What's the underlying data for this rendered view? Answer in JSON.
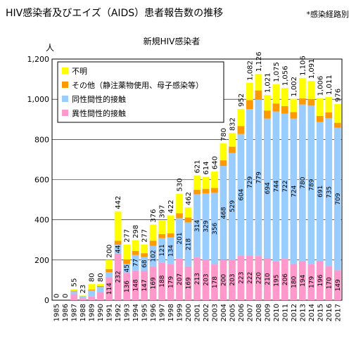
{
  "header": {
    "title": "HIV感染者及びエイズ（AIDS）患者報告数の推移",
    "note": "*感染経路別"
  },
  "chart_data": {
    "type": "bar",
    "stacked": true,
    "title": "新規HIV感染者",
    "ylabel": "人",
    "ylim": [
      0,
      1200
    ],
    "yticks": [
      0,
      200,
      400,
      600,
      800,
      1000,
      1200
    ],
    "ytick_labels": [
      "0",
      "200",
      "400",
      "600",
      "800",
      "1,000",
      "1,200"
    ],
    "grid": true,
    "legend_position": "top-left",
    "categories": [
      "1985",
      "1986",
      "1987",
      "1988",
      "1989",
      "1990",
      "1991",
      "1992",
      "1993",
      "1994",
      "1995",
      "1996",
      "1997",
      "1998",
      "1999",
      "2000",
      "2001",
      "2002",
      "2003",
      "2004",
      "2005",
      "2006",
      "2007",
      "2008",
      "2009",
      "2010",
      "2011",
      "2012",
      "2013",
      "2014",
      "2015",
      "2016",
      "2017"
    ],
    "series": [
      {
        "name": "異性間性的接触",
        "color": "#ff99cc",
        "values": [
          0,
          0,
          30,
          10,
          18,
          40,
          114,
          232,
          136,
          148,
          147,
          169,
          188,
          179,
          207,
          169,
          213,
          203,
          178,
          200,
          203,
          223,
          222,
          220,
          210,
          195,
          206,
          180,
          194,
          179,
          196,
          170,
          149
        ]
      },
      {
        "name": "同性間性的接触",
        "color": "#99ccff",
        "values": [
          0,
          0,
          14,
          8,
          30,
          26,
          26,
          44,
          45,
          77,
          68,
          102,
          121,
          134,
          201,
          218,
          314,
          329,
          356,
          468,
          529,
          604,
          729,
          779,
          694,
          744,
          722,
          724,
          780,
          789,
          691,
          735,
          709
        ]
      },
      {
        "name": "その他（静注薬物使用、母子感染等）",
        "color": "#ff9900",
        "values": [
          0,
          0,
          3,
          2,
          5,
          4,
          15,
          20,
          22,
          20,
          19,
          25,
          20,
          20,
          25,
          25,
          22,
          22,
          25,
          28,
          32,
          40,
          45,
          45,
          40,
          40,
          38,
          32,
          30,
          33,
          30,
          30,
          25
        ]
      },
      {
        "name": "不明",
        "color": "#ffff00",
        "values": [
          0,
          0,
          8,
          3,
          27,
          10,
          45,
          146,
          74,
          53,
          43,
          80,
          68,
          89,
          97,
          50,
          72,
          60,
          81,
          84,
          68,
          85,
          86,
          82,
          77,
          96,
          90,
          66,
          102,
          90,
          89,
          76,
          93
        ]
      }
    ],
    "totals": [
      0,
      0,
      55,
      23,
      80,
      80,
      200,
      442,
      277,
      298,
      277,
      376,
      397,
      422,
      530,
      462,
      621,
      614,
      640,
      780,
      832,
      952,
      1082,
      1126,
      1021,
      1075,
      1056,
      1002,
      1106,
      1091,
      1006,
      1011,
      976
    ],
    "total_labels": [
      "0",
      "0",
      "55",
      "23",
      "80",
      "80",
      "200",
      "442",
      "277",
      "298",
      "277",
      "376",
      "397",
      "422",
      "530",
      "462",
      "621",
      "614",
      "640",
      "780",
      "832",
      "952",
      "1,082",
      "1,126",
      "1,021",
      "1,075",
      "1,056",
      "1,002",
      "1,106",
      "1,091",
      "1,006",
      "1,011",
      "976"
    ],
    "shown_segment_labels": {
      "異性間性的接触": [
        null,
        null,
        null,
        null,
        null,
        null,
        "114",
        "232",
        "136",
        "148",
        "147",
        "169",
        "188",
        "179",
        "207",
        "169",
        "213",
        "203",
        "178",
        "200",
        "203",
        "223",
        "222",
        "220",
        "210",
        "195",
        "206",
        "180",
        "194",
        "179",
        "196",
        "170",
        "149"
      ],
      "同性間性的接触": [
        null,
        null,
        null,
        null,
        null,
        null,
        null,
        "44",
        "45",
        "77",
        "68",
        "102",
        "121",
        "134",
        "201",
        "218",
        "314",
        "329",
        "356",
        "468",
        "529",
        "604",
        "729",
        "779",
        "694",
        "744",
        "722",
        "724",
        "780",
        "789",
        "691",
        "735",
        "709"
      ]
    }
  }
}
